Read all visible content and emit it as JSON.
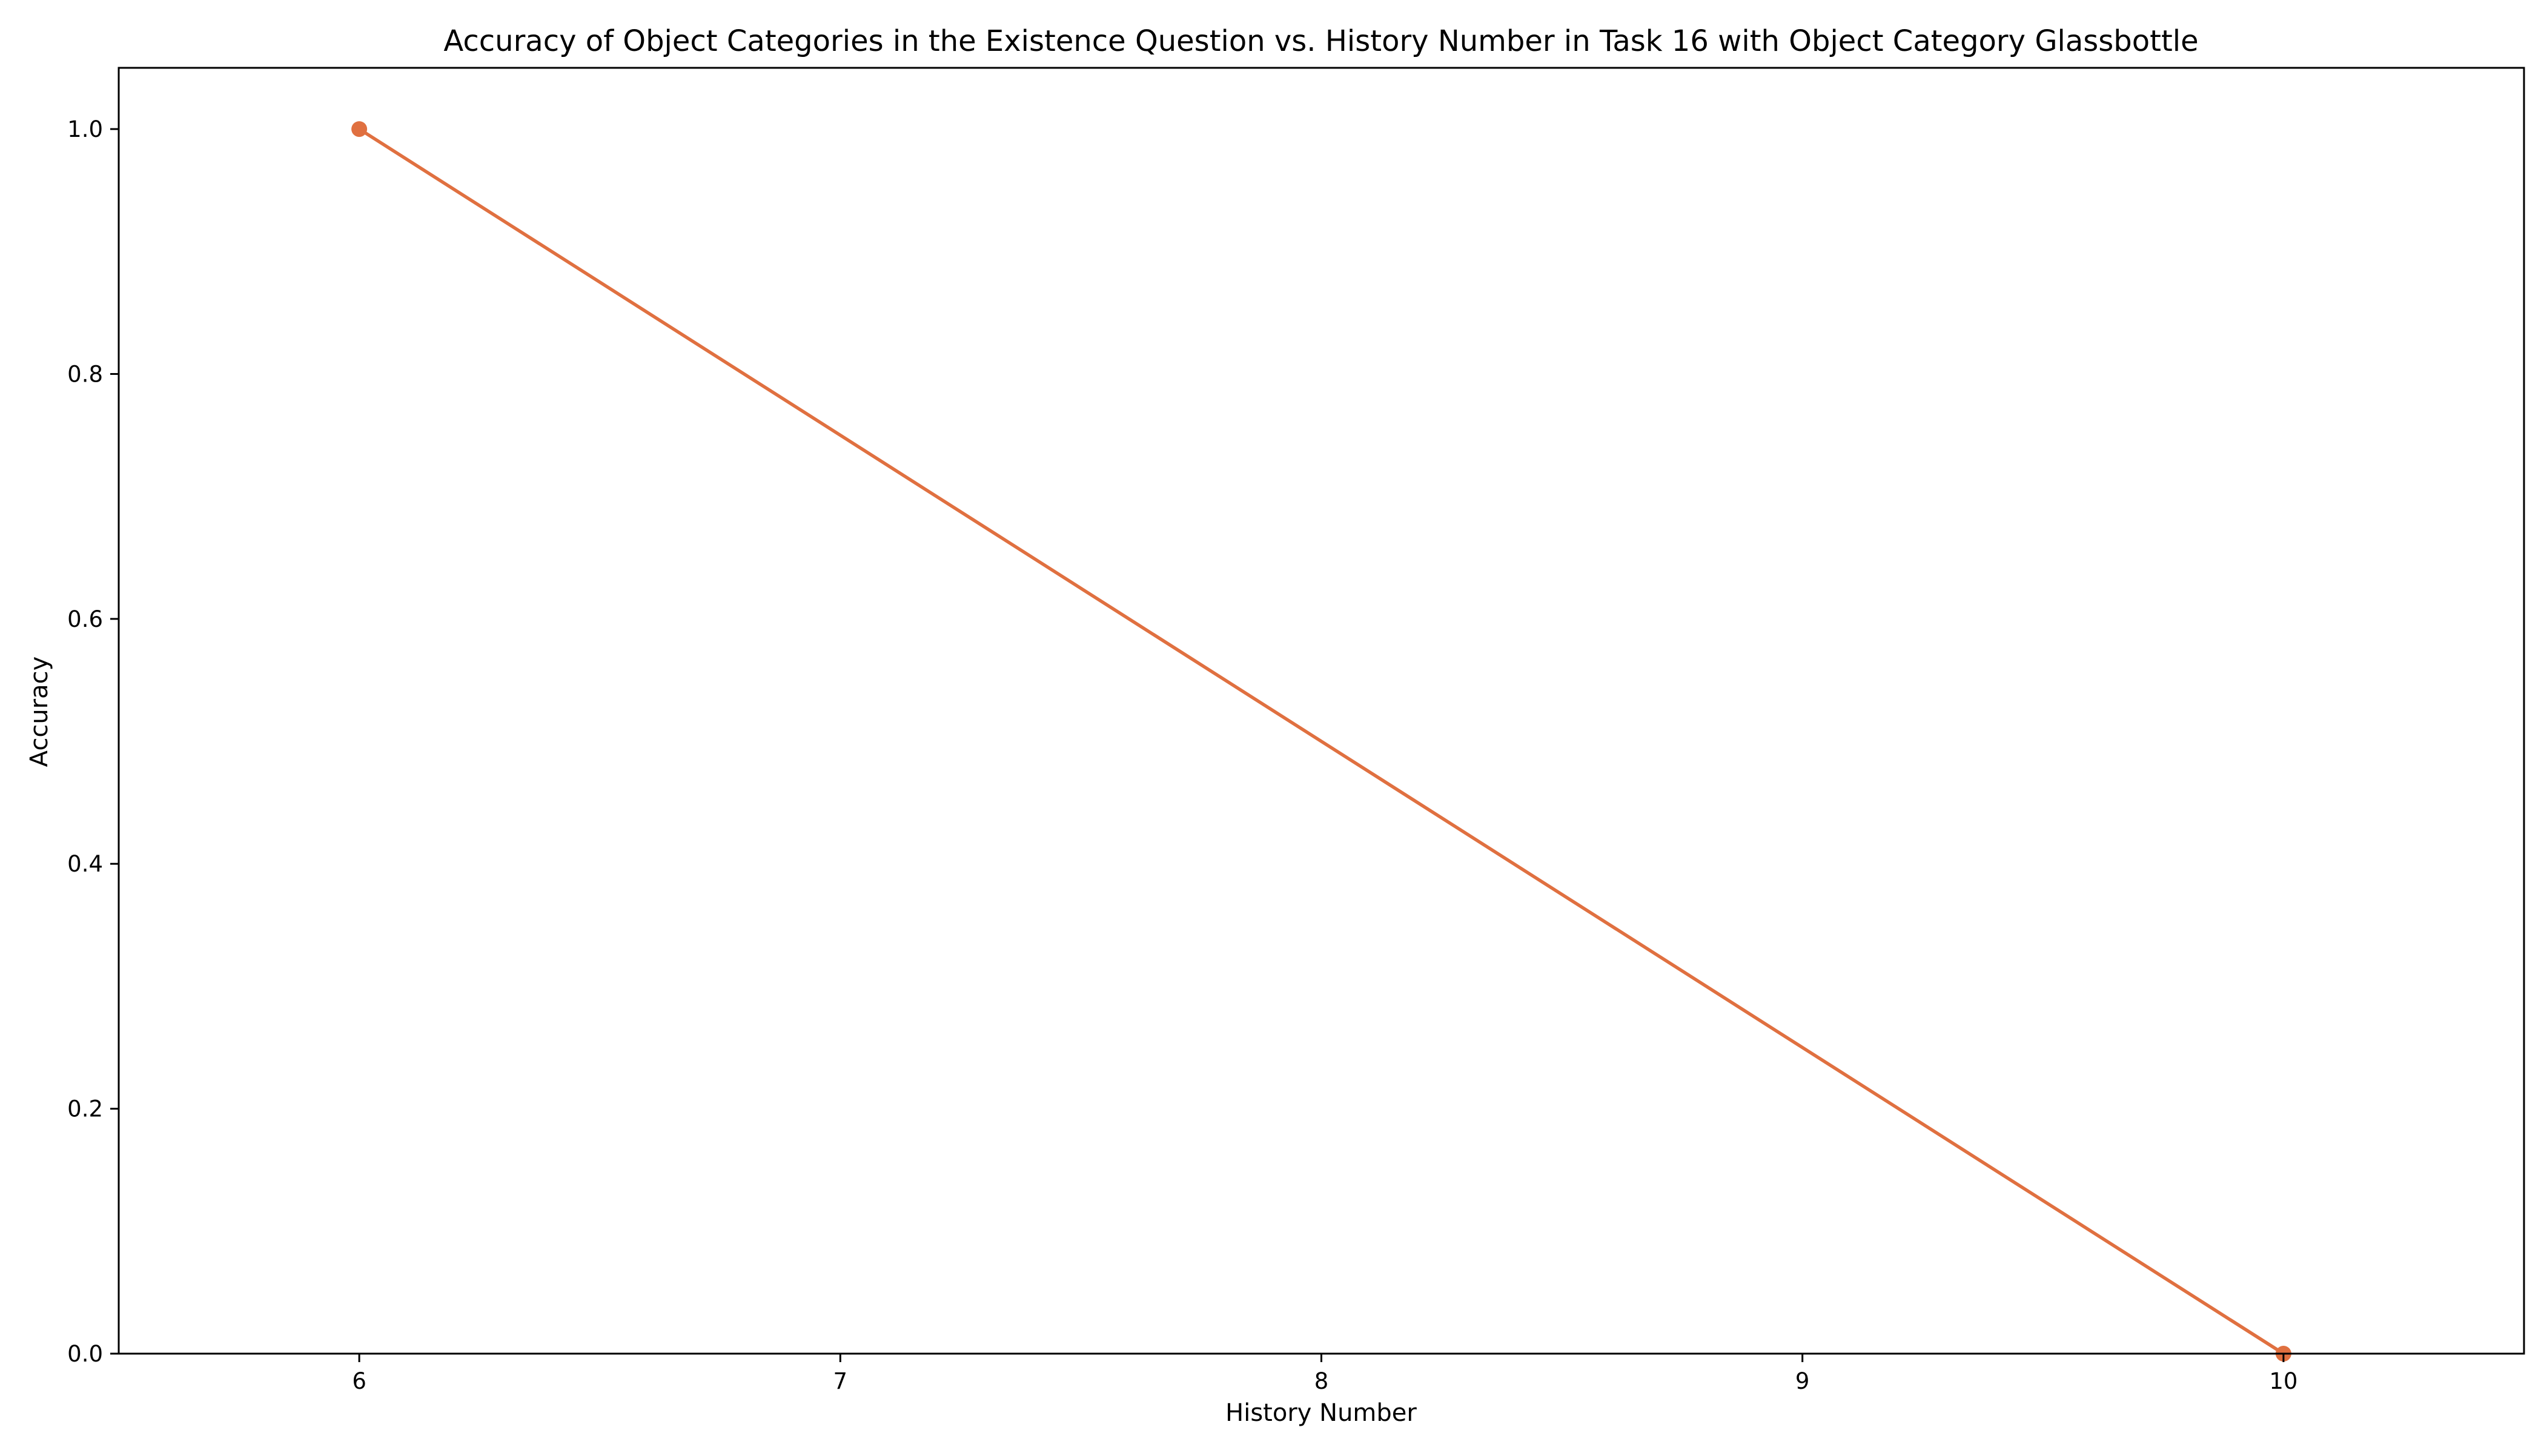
{
  "chart_data": {
    "type": "line",
    "title": "Accuracy of Object Categories in the Existence Question vs. History Number in Task 16 with Object Category Glassbottle",
    "xlabel": "History Number",
    "ylabel": "Accuracy",
    "xlim": [
      5.5,
      10.5
    ],
    "ylim": [
      0,
      1.05
    ],
    "xticks": [
      6,
      7,
      8,
      9,
      10
    ],
    "xtick_labels": [
      "6",
      "7",
      "8",
      "9",
      "10"
    ],
    "yticks": [
      0,
      0.2,
      0.4,
      0.6,
      0.8,
      1.0
    ],
    "ytick_labels": [
      "0.0",
      "0.2",
      "0.4",
      "0.6",
      "0.8",
      "1.0"
    ],
    "grid": false,
    "series": [
      {
        "color": "#E07040",
        "marker": "circle",
        "x": [
          6,
          10
        ],
        "y": [
          1.0,
          0.0
        ]
      }
    ]
  }
}
